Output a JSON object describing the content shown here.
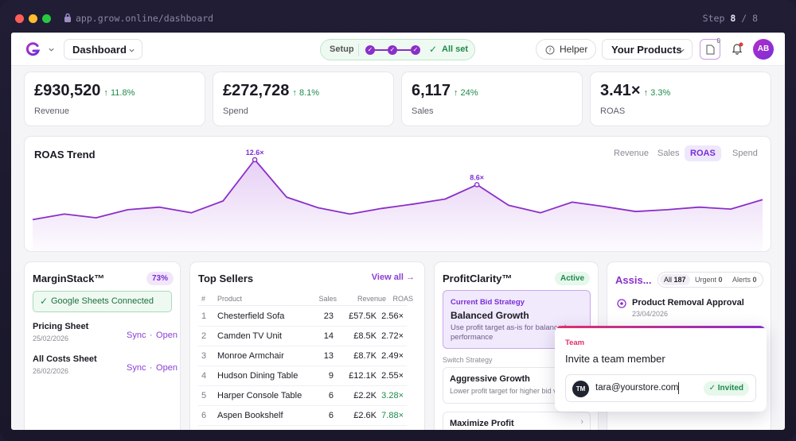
{
  "browser": {
    "url": "app.grow.online/dashboard",
    "step_label": "Step",
    "step_current": "8",
    "step_sep": "/",
    "step_total": "8"
  },
  "nav": {
    "logo": "G",
    "dashboard_label": "Dashboard",
    "setup_label": "Setup",
    "allset_label": "All set",
    "helper_label": "Helper",
    "products_label": "Your Products",
    "doc_count": "0",
    "avatar": "AB"
  },
  "kpis": [
    {
      "value": "£930,520",
      "change": "↑ 11.8%",
      "label": "Revenue"
    },
    {
      "value": "£272,728",
      "change": "↑ 8.1%",
      "label": "Spend"
    },
    {
      "value": "6,117",
      "change": "↑ 24%",
      "label": "Sales"
    },
    {
      "value": "3.41×",
      "change": "↑ 3.3%",
      "label": "ROAS"
    }
  ],
  "trend": {
    "title": "ROAS Trend",
    "tabs": [
      "Revenue",
      "Sales",
      "ROAS",
      "Spend"
    ],
    "active_tab": "ROAS",
    "peak1": "12.6×",
    "peak2": "8.6×"
  },
  "chart_data": {
    "type": "area",
    "title": "ROAS Trend",
    "x": [
      1,
      2,
      3,
      4,
      5,
      6,
      7,
      8,
      9,
      10,
      11,
      12,
      13,
      14,
      15,
      16,
      17,
      18,
      19,
      20,
      21,
      22,
      23,
      24
    ],
    "values": [
      3.0,
      3.9,
      3.3,
      4.6,
      5.0,
      4.1,
      6.0,
      12.6,
      6.6,
      4.9,
      3.9,
      4.8,
      5.5,
      6.3,
      8.6,
      5.3,
      4.1,
      5.8,
      5.1,
      4.3,
      4.6,
      5.0,
      4.7,
      6.2
    ],
    "annotations": [
      {
        "x": 8,
        "label": "12.6×"
      },
      {
        "x": 15,
        "label": "8.6×"
      }
    ],
    "ylim": [
      0,
      14
    ],
    "color": "#8a2fc9",
    "grid": false,
    "legend": "none"
  },
  "margin": {
    "title": "MarginStack™",
    "percent": "73%",
    "connected": "Google Sheets Connected",
    "sheets": [
      {
        "name": "Pricing Sheet",
        "date": "25/02/2026",
        "sync": "Sync",
        "sep": "·",
        "open": "Open"
      },
      {
        "name": "All Costs Sheet",
        "date": "26/02/2026",
        "sync": "Sync",
        "sep": "·",
        "open": "Open"
      }
    ]
  },
  "sellers": {
    "title": "Top Sellers",
    "view_all": "View all →",
    "headers": [
      "#",
      "Product",
      "Sales",
      "Revenue",
      "ROAS"
    ],
    "rows": [
      {
        "n": "1",
        "name": "Chesterfield Sofa",
        "sales": "23",
        "rev": "£57.5K",
        "roas": "2.56×",
        "good": false
      },
      {
        "n": "2",
        "name": "Camden TV Unit",
        "sales": "14",
        "rev": "£8.5K",
        "roas": "2.72×",
        "good": false
      },
      {
        "n": "3",
        "name": "Monroe Armchair",
        "sales": "13",
        "rev": "£8.7K",
        "roas": "2.49×",
        "good": false
      },
      {
        "n": "4",
        "name": "Hudson Dining Table",
        "sales": "9",
        "rev": "£12.1K",
        "roas": "2.55×",
        "good": false
      },
      {
        "n": "5",
        "name": "Harper Console Table",
        "sales": "6",
        "rev": "£2.2K",
        "roas": "3.28×",
        "good": true
      },
      {
        "n": "6",
        "name": "Aspen Bookshelf",
        "sales": "6",
        "rev": "£2.6K",
        "roas": "7.88×",
        "good": true
      }
    ]
  },
  "profit": {
    "title": "ProfitClarity™",
    "status": "Active",
    "current_label": "Current Bid Strategy",
    "current_name": "Balanced Growth",
    "current_desc": "Use profit target as-is for balanced performance",
    "switch_label": "Switch Strategy",
    "options": [
      {
        "name": "Aggressive Growth",
        "desc": "Lower profit target for higher bid volume"
      },
      {
        "name": "Maximize Profit",
        "desc": ""
      }
    ]
  },
  "assist": {
    "title": "Assis...",
    "filters": [
      {
        "label": "All",
        "count": "187"
      },
      {
        "label": "Urgent",
        "count": "0"
      },
      {
        "label": "Alerts",
        "count": "0"
      }
    ],
    "item_title": "Product Removal Approval",
    "item_date": "23/04/2026"
  },
  "popup": {
    "tag": "Team",
    "title": "Invite a team member",
    "avatar": "TM",
    "email": "tara@yourstore.com",
    "status": "Invited"
  }
}
